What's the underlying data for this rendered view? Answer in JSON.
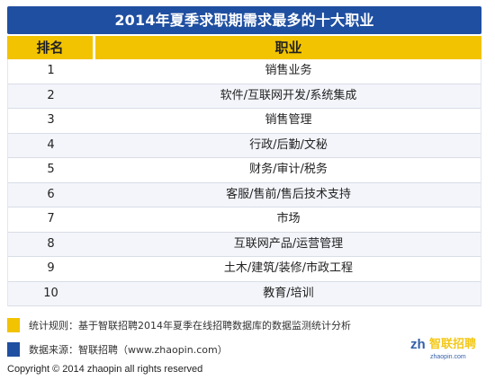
{
  "title": "2014年夏季求职期需求最多的十大职业",
  "table": {
    "headers": {
      "rank": "排名",
      "job": "职业"
    },
    "rows": [
      {
        "rank": "1",
        "job": "销售业务"
      },
      {
        "rank": "2",
        "job": "软件/互联网开发/系统集成"
      },
      {
        "rank": "3",
        "job": "销售管理"
      },
      {
        "rank": "4",
        "job": "行政/后勤/文秘"
      },
      {
        "rank": "5",
        "job": "财务/审计/税务"
      },
      {
        "rank": "6",
        "job": "客服/售前/售后技术支持"
      },
      {
        "rank": "7",
        "job": "市场"
      },
      {
        "rank": "8",
        "job": "互联网产品/运营管理"
      },
      {
        "rank": "9",
        "job": "土木/建筑/装修/市政工程"
      },
      {
        "rank": "10",
        "job": "教育/培训"
      }
    ]
  },
  "notes": {
    "rule": "统计规则：基于智联招聘2014年夏季在线招聘数据库的数据监测统计分析",
    "source": "数据来源：智联招聘（www.zhaopin.com）"
  },
  "copyright": "Copyright © 2014 zhaopin all rights reserved",
  "logo": {
    "text": "智联招聘",
    "sub": "zhaopin.com"
  },
  "colors": {
    "title_bg": "#1f4fa0",
    "header_bg": "#f2c300",
    "rule_swatch": "#f2c300",
    "source_swatch": "#1f4fa0"
  }
}
